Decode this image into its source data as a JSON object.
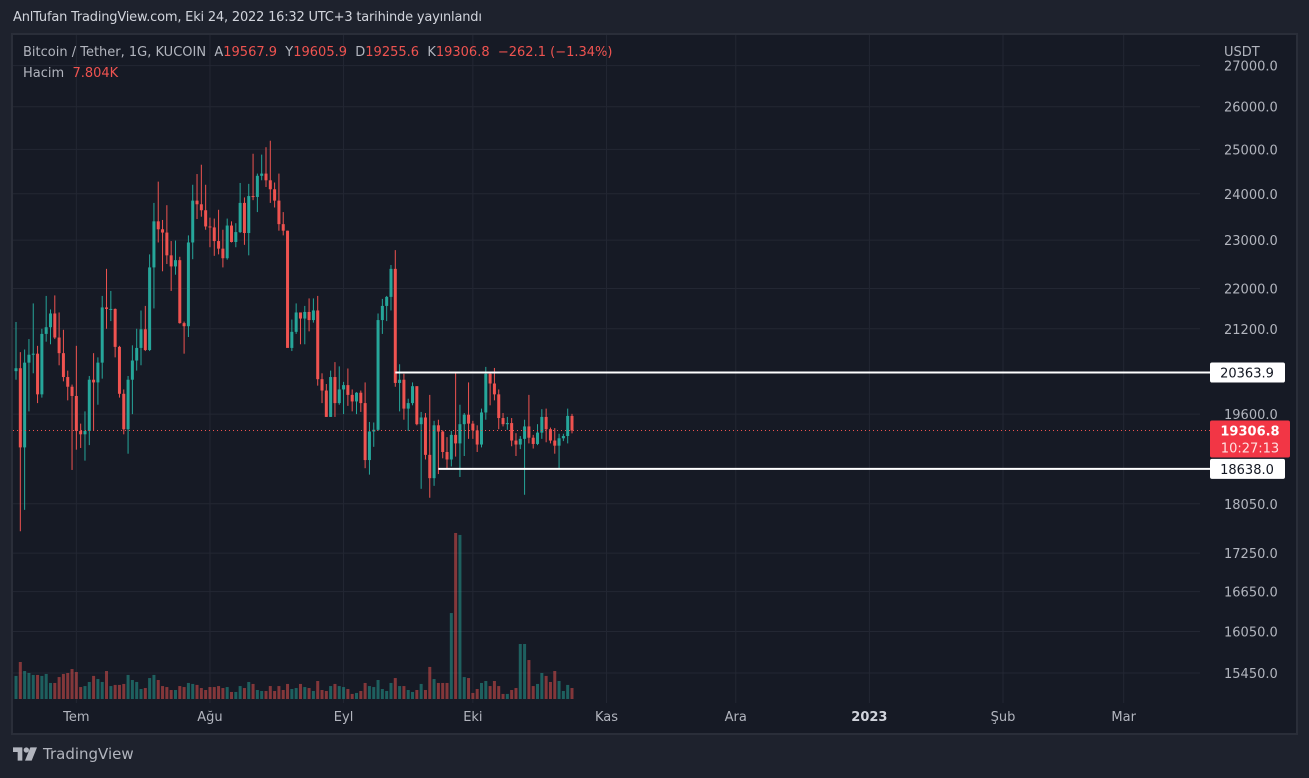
{
  "publish_line": "AnlTufan TradingView.com, Eki 24, 2022 16:32 UTC+3 tarihinde yayınlandı",
  "legend": {
    "symbol": "Bitcoin / Tether, 1G, KUCOIN",
    "open_label": "A",
    "open": "19567.9",
    "high_label": "Y",
    "high": "19605.9",
    "low_label": "D",
    "low": "19255.6",
    "close_label": "K",
    "close": "19306.8",
    "change": "−262.1 (−1.34%)",
    "volume_label": "Hacim",
    "volume": "7.804K"
  },
  "footer": {
    "brand": "TradingView"
  },
  "colors": {
    "up": "#26a69a",
    "down": "#ef5350",
    "background": "#161a25",
    "frame": "#1e222d",
    "price_label": "#f23645",
    "level_line": "#ffffff"
  },
  "chart_data": {
    "type": "candlestick",
    "symbol": "Bitcoin / Tether",
    "interval": "1G",
    "exchange": "KUCOIN",
    "currency_label": "USDT",
    "y_scale": "log",
    "ylim": [
      15200,
      27200
    ],
    "grid": true,
    "y_ticks": [
      "27000.0",
      "26000.0",
      "25000.0",
      "24000.0",
      "23000.0",
      "22000.0",
      "21200.0",
      "19600.0",
      "18050.0",
      "17250.0",
      "16650.0",
      "16050.0",
      "15450.0"
    ],
    "x_ticks": [
      {
        "label": "Tem",
        "date": "2022-07-01",
        "bold": false
      },
      {
        "label": "Ağu",
        "date": "2022-08-01",
        "bold": false
      },
      {
        "label": "Eyl",
        "date": "2022-09-01",
        "bold": false
      },
      {
        "label": "Eki",
        "date": "2022-10-01",
        "bold": false
      },
      {
        "label": "Kas",
        "date": "2022-11-01",
        "bold": false
      },
      {
        "label": "Ara",
        "date": "2022-12-01",
        "bold": false
      },
      {
        "label": "2023",
        "date": "2023-01-01",
        "bold": true
      },
      {
        "label": "Şub",
        "date": "2023-02-01",
        "bold": false
      },
      {
        "label": "Mar",
        "date": "2023-03-01",
        "bold": false
      }
    ],
    "horizontal_levels": [
      {
        "value": 20363.9,
        "label": "20363.9",
        "from_date": "2022-09-13"
      },
      {
        "value": 18638.0,
        "label": "18638.0",
        "from_date": "2022-09-23"
      }
    ],
    "last_price": {
      "value": 19306.8,
      "label": "19306.8",
      "countdown": "10:27:13"
    },
    "columns": [
      "date",
      "open",
      "high",
      "low",
      "close",
      "volume_k"
    ],
    "candles": [
      [
        "2022-06-17",
        20390,
        21333,
        20230,
        20445,
        16.4
      ],
      [
        "2022-06-18",
        20445,
        20750,
        17600,
        19010,
        26.3
      ],
      [
        "2022-06-19",
        19010,
        20800,
        17950,
        20550,
        19.9
      ],
      [
        "2022-06-20",
        20550,
        21000,
        19650,
        20700,
        18.5
      ],
      [
        "2022-06-21",
        20700,
        21700,
        20350,
        20720,
        17.1
      ],
      [
        "2022-06-22",
        20720,
        20870,
        19800,
        19960,
        17.1
      ],
      [
        "2022-06-23",
        19960,
        21200,
        19900,
        21100,
        16.4
      ],
      [
        "2022-06-24",
        21100,
        21850,
        20950,
        21230,
        17.8
      ],
      [
        "2022-06-25",
        21230,
        21580,
        20900,
        21500,
        11.4
      ],
      [
        "2022-06-26",
        21500,
        21860,
        21000,
        21030,
        11.4
      ],
      [
        "2022-06-27",
        21030,
        21520,
        20500,
        20730,
        15.6
      ],
      [
        "2022-06-28",
        20730,
        21180,
        20200,
        20280,
        17.8
      ],
      [
        "2022-06-29",
        20280,
        20400,
        19850,
        20100,
        18.5
      ],
      [
        "2022-06-30",
        20100,
        20140,
        18620,
        19930,
        21.3
      ],
      [
        "2022-07-01",
        19930,
        20870,
        18970,
        19300,
        19.2
      ],
      [
        "2022-07-02",
        19300,
        19430,
        19000,
        19240,
        8.5
      ],
      [
        "2022-07-03",
        19240,
        19650,
        18780,
        19300,
        9.2
      ],
      [
        "2022-07-04",
        19300,
        20300,
        19050,
        20230,
        12.1
      ],
      [
        "2022-07-05",
        20230,
        20730,
        19300,
        20180,
        16.4
      ],
      [
        "2022-07-06",
        20180,
        20650,
        19770,
        20550,
        14.2
      ],
      [
        "2022-07-07",
        20550,
        21850,
        20250,
        21620,
        12.1
      ],
      [
        "2022-07-08",
        21620,
        22400,
        21200,
        21590,
        19.9
      ],
      [
        "2022-07-09",
        21590,
        21950,
        21350,
        21590,
        9.2
      ],
      [
        "2022-07-10",
        21590,
        21600,
        20650,
        20850,
        10.0
      ],
      [
        "2022-07-11",
        20850,
        20870,
        19900,
        19970,
        10.0
      ],
      [
        "2022-07-12",
        19970,
        20050,
        19240,
        19330,
        10.7
      ],
      [
        "2022-07-13",
        19330,
        20300,
        18900,
        20230,
        17.1
      ],
      [
        "2022-07-14",
        20230,
        20880,
        19600,
        20590,
        13.5
      ],
      [
        "2022-07-15",
        20590,
        21200,
        20400,
        20830,
        12.1
      ],
      [
        "2022-07-16",
        20830,
        21560,
        20500,
        21190,
        7.1
      ],
      [
        "2022-07-17",
        21190,
        21650,
        20770,
        20790,
        7.8
      ],
      [
        "2022-07-18",
        20790,
        22700,
        20770,
        22430,
        14.9
      ],
      [
        "2022-07-19",
        22430,
        23800,
        21600,
        23400,
        17.1
      ],
      [
        "2022-07-20",
        23400,
        24270,
        22950,
        23230,
        13.5
      ],
      [
        "2022-07-21",
        23230,
        23430,
        22350,
        23160,
        9.2
      ],
      [
        "2022-07-22",
        23160,
        23750,
        22500,
        22680,
        8.5
      ],
      [
        "2022-07-23",
        22680,
        22980,
        21950,
        22450,
        6.4
      ],
      [
        "2022-07-24",
        22450,
        22990,
        22280,
        22580,
        6.4
      ],
      [
        "2022-07-25",
        22580,
        22650,
        21300,
        21310,
        9.2
      ],
      [
        "2022-07-26",
        21310,
        21340,
        20720,
        21250,
        8.5
      ],
      [
        "2022-07-27",
        21250,
        23100,
        21040,
        22950,
        11.4
      ],
      [
        "2022-07-28",
        22950,
        24200,
        22600,
        23850,
        10.7
      ],
      [
        "2022-07-29",
        23850,
        24440,
        23450,
        23770,
        10.0
      ],
      [
        "2022-07-30",
        23770,
        24650,
        23500,
        23640,
        7.8
      ],
      [
        "2022-07-31",
        23640,
        24200,
        23220,
        23290,
        6.4
      ],
      [
        "2022-08-01",
        23290,
        23480,
        22850,
        23270,
        8.5
      ],
      [
        "2022-08-02",
        23270,
        23460,
        22670,
        22980,
        8.5
      ],
      [
        "2022-08-03",
        22980,
        23650,
        22700,
        22820,
        9.2
      ],
      [
        "2022-08-04",
        22820,
        23220,
        22430,
        22620,
        7.8
      ],
      [
        "2022-08-05",
        22620,
        23460,
        22590,
        23310,
        8.5
      ],
      [
        "2022-08-06",
        23310,
        23400,
        22950,
        22960,
        5.0
      ],
      [
        "2022-08-07",
        22960,
        23360,
        22850,
        23170,
        5.0
      ],
      [
        "2022-08-08",
        23170,
        24240,
        23150,
        23800,
        9.2
      ],
      [
        "2022-08-09",
        23800,
        23920,
        22900,
        23150,
        7.8
      ],
      [
        "2022-08-10",
        23150,
        24220,
        22680,
        23950,
        12.1
      ],
      [
        "2022-08-11",
        23950,
        24900,
        23860,
        23930,
        10.7
      ],
      [
        "2022-08-12",
        23930,
        24450,
        23600,
        24400,
        6.4
      ],
      [
        "2022-08-13",
        24400,
        24880,
        24300,
        24450,
        5.7
      ],
      [
        "2022-08-14",
        24450,
        25050,
        24150,
        24300,
        5.7
      ],
      [
        "2022-08-15",
        24300,
        25200,
        23800,
        24100,
        9.2
      ],
      [
        "2022-08-16",
        24100,
        24250,
        23700,
        23850,
        5.7
      ],
      [
        "2022-08-17",
        23850,
        24450,
        23200,
        23340,
        9.2
      ],
      [
        "2022-08-18",
        23340,
        23600,
        23100,
        23200,
        6.4
      ],
      [
        "2022-08-19",
        23200,
        23200,
        20850,
        20830,
        10.7
      ],
      [
        "2022-08-20",
        20830,
        21380,
        20770,
        21140,
        7.1
      ],
      [
        "2022-08-21",
        21140,
        21700,
        21100,
        21520,
        7.8
      ],
      [
        "2022-08-22",
        21520,
        21520,
        20900,
        21400,
        10.7
      ],
      [
        "2022-08-23",
        21400,
        21650,
        20900,
        21530,
        8.5
      ],
      [
        "2022-08-24",
        21530,
        21800,
        21150,
        21370,
        7.8
      ],
      [
        "2022-08-25",
        21370,
        21800,
        21320,
        21560,
        5.7
      ],
      [
        "2022-08-26",
        21560,
        21850,
        20120,
        20240,
        12.8
      ],
      [
        "2022-08-27",
        20240,
        20350,
        19800,
        20030,
        6.4
      ],
      [
        "2022-08-28",
        20030,
        20150,
        19550,
        19550,
        5.7
      ],
      [
        "2022-08-29",
        19550,
        20400,
        19550,
        20280,
        9.2
      ],
      [
        "2022-08-30",
        20280,
        20560,
        19550,
        19800,
        10.7
      ],
      [
        "2022-08-31",
        19800,
        20480,
        19770,
        20050,
        9.2
      ],
      [
        "2022-09-01",
        20050,
        20190,
        19600,
        20130,
        8.5
      ],
      [
        "2022-09-02",
        20130,
        20440,
        19750,
        19950,
        7.1
      ],
      [
        "2022-09-03",
        19950,
        20050,
        19650,
        19830,
        3.6
      ],
      [
        "2022-09-04",
        19830,
        20000,
        19600,
        19990,
        4.3
      ],
      [
        "2022-09-05",
        19990,
        20030,
        19640,
        19800,
        5.7
      ],
      [
        "2022-09-06",
        19800,
        20180,
        18650,
        18790,
        11.4
      ],
      [
        "2022-09-07",
        18790,
        19460,
        18540,
        19290,
        9.2
      ],
      [
        "2022-09-08",
        19290,
        19450,
        19020,
        19320,
        8.5
      ],
      [
        "2022-09-09",
        19320,
        21500,
        19300,
        21370,
        13.5
      ],
      [
        "2022-09-10",
        21370,
        21790,
        21100,
        21650,
        7.1
      ],
      [
        "2022-09-11",
        21650,
        21850,
        21350,
        21830,
        5.7
      ],
      [
        "2022-09-12",
        21830,
        22480,
        21560,
        22400,
        11.4
      ],
      [
        "2022-09-13",
        22400,
        22790,
        20100,
        20170,
        14.9
      ],
      [
        "2022-09-14",
        20170,
        20520,
        19650,
        20230,
        9.2
      ],
      [
        "2022-09-15",
        20230,
        20340,
        19500,
        19700,
        9.2
      ],
      [
        "2022-09-16",
        19700,
        19880,
        19300,
        19800,
        6.4
      ],
      [
        "2022-09-17",
        19800,
        20180,
        19760,
        20110,
        5.0
      ],
      [
        "2022-09-18",
        20110,
        20110,
        19400,
        19420,
        6.4
      ],
      [
        "2022-09-19",
        19420,
        19640,
        18300,
        19540,
        10.7
      ],
      [
        "2022-09-20",
        19540,
        19620,
        18800,
        18880,
        6.4
      ],
      [
        "2022-09-21",
        18880,
        19950,
        18150,
        18480,
        22.8
      ],
      [
        "2022-09-22",
        18480,
        19480,
        18350,
        19400,
        14.2
      ],
      [
        "2022-09-23",
        19400,
        19500,
        18550,
        19290,
        11.4
      ],
      [
        "2022-09-24",
        19290,
        19310,
        18820,
        18930,
        11.4
      ],
      [
        "2022-09-25",
        18930,
        19190,
        18650,
        18800,
        11.4
      ],
      [
        "2022-09-26",
        18800,
        19300,
        18680,
        19230,
        61.1
      ],
      [
        "2022-09-27",
        19230,
        20380,
        18850,
        19080,
        118.0
      ],
      [
        "2022-09-28",
        19080,
        19770,
        18500,
        19420,
        116.6
      ],
      [
        "2022-09-29",
        19420,
        19620,
        18860,
        19590,
        15.6
      ],
      [
        "2022-09-30",
        19590,
        20180,
        19160,
        19430,
        14.9
      ],
      [
        "2022-10-01",
        19430,
        19480,
        19160,
        19310,
        4.3
      ],
      [
        "2022-10-02",
        19310,
        19400,
        18930,
        19060,
        7.1
      ],
      [
        "2022-10-03",
        19060,
        19700,
        19010,
        19630,
        11.4
      ],
      [
        "2022-10-04",
        19630,
        20470,
        19500,
        20340,
        12.8
      ],
      [
        "2022-10-05",
        20340,
        20360,
        19760,
        20160,
        9.2
      ],
      [
        "2022-10-06",
        20160,
        20450,
        19850,
        19960,
        12.8
      ],
      [
        "2022-10-07",
        19960,
        20050,
        19330,
        19530,
        9.2
      ],
      [
        "2022-10-08",
        19530,
        19620,
        19380,
        19420,
        3.6
      ],
      [
        "2022-10-09",
        19420,
        19550,
        19320,
        19440,
        3.6
      ],
      [
        "2022-10-10",
        19440,
        19530,
        19030,
        19130,
        6.4
      ],
      [
        "2022-10-11",
        19130,
        19260,
        18860,
        19060,
        7.8
      ],
      [
        "2022-10-12",
        19060,
        19210,
        18980,
        19160,
        39.1
      ],
      [
        "2022-10-13",
        19160,
        19500,
        18200,
        19380,
        39.1
      ],
      [
        "2022-10-14",
        19380,
        19950,
        19080,
        19180,
        27.7
      ],
      [
        "2022-10-15",
        19180,
        19230,
        18990,
        19070,
        9.2
      ],
      [
        "2022-10-16",
        19070,
        19420,
        19050,
        19270,
        10.7
      ],
      [
        "2022-10-17",
        19270,
        19690,
        19160,
        19550,
        18.5
      ],
      [
        "2022-10-18",
        19550,
        19700,
        19100,
        19330,
        16.4
      ],
      [
        "2022-10-19",
        19330,
        19360,
        19080,
        19130,
        12.1
      ],
      [
        "2022-10-20",
        19130,
        19350,
        18900,
        19040,
        19.9
      ],
      [
        "2022-10-21",
        19040,
        19250,
        18650,
        19170,
        12.8
      ],
      [
        "2022-10-22",
        19170,
        19250,
        19120,
        19210,
        5.7
      ],
      [
        "2022-10-23",
        19210,
        19700,
        19080,
        19567.9,
        10.0
      ],
      [
        "2022-10-24",
        19567.9,
        19605.9,
        19255.6,
        19306.8,
        7.804
      ]
    ]
  }
}
